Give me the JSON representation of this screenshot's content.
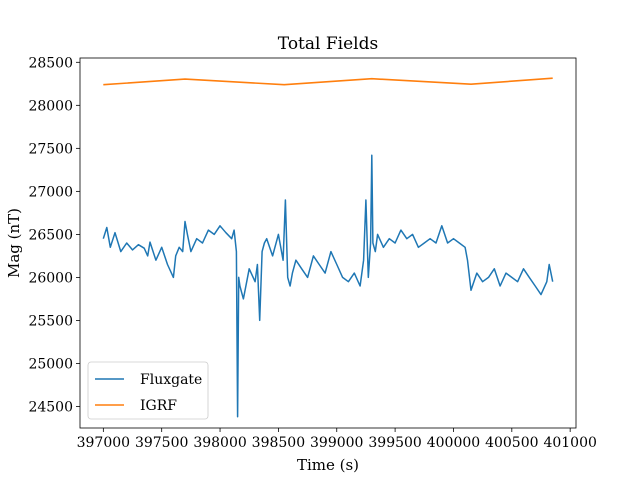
{
  "chart_data": {
    "type": "line",
    "title": "Total Fields",
    "xlabel": "Time (s)",
    "ylabel": "Mag (nT)",
    "xlim": [
      396800,
      401050
    ],
    "ylim": [
      24250,
      28550
    ],
    "xticks": [
      397000,
      397500,
      398000,
      398500,
      399000,
      399500,
      400000,
      400500,
      401000
    ],
    "yticks": [
      24500,
      25000,
      25500,
      26000,
      26500,
      27000,
      27500,
      28000,
      28500
    ],
    "grid": false,
    "legend": {
      "position": "lower-left",
      "entries": [
        {
          "label": "Fluxgate",
          "color": "#1f77b4"
        },
        {
          "label": "IGRF",
          "color": "#ff7f0e"
        }
      ]
    },
    "series": [
      {
        "name": "IGRF",
        "color": "#ff7f0e",
        "x": [
          397000,
          397700,
          398550,
          399300,
          400150,
          400850
        ],
        "y": [
          28240,
          28305,
          28240,
          28310,
          28245,
          28315
        ]
      },
      {
        "name": "Fluxgate",
        "color": "#1f77b4",
        "x": [
          397000,
          397030,
          397060,
          397100,
          397150,
          397200,
          397250,
          397300,
          397350,
          397380,
          397400,
          397450,
          397500,
          397550,
          397600,
          397620,
          397650,
          397680,
          397700,
          397720,
          397750,
          397800,
          397850,
          397900,
          397950,
          398000,
          398050,
          398100,
          398120,
          398140,
          398150,
          398160,
          398170,
          398200,
          398250,
          398300,
          398320,
          398340,
          398360,
          398380,
          398400,
          398450,
          398500,
          398540,
          398560,
          398580,
          398600,
          398620,
          398650,
          398700,
          398750,
          398800,
          398850,
          398900,
          398950,
          399000,
          399050,
          399100,
          399150,
          399200,
          399230,
          399250,
          399270,
          399290,
          399300,
          399310,
          399330,
          399350,
          399400,
          399450,
          399500,
          399550,
          399600,
          399650,
          399700,
          399750,
          399800,
          399850,
          399900,
          399950,
          400000,
          400050,
          400100,
          400120,
          400150,
          400200,
          400250,
          400300,
          400350,
          400400,
          400450,
          400500,
          400550,
          400600,
          400650,
          400700,
          400750,
          400800,
          400820,
          400850
        ],
        "y": [
          26450,
          26580,
          26350,
          26520,
          26300,
          26400,
          26320,
          26380,
          26340,
          26250,
          26410,
          26200,
          26350,
          26150,
          26000,
          26250,
          26350,
          26300,
          26650,
          26500,
          26300,
          26450,
          26400,
          26550,
          26500,
          26600,
          26520,
          26450,
          26550,
          26300,
          24380,
          26000,
          25900,
          25750,
          26100,
          25950,
          26150,
          25500,
          26300,
          26400,
          26450,
          26250,
          26500,
          26200,
          26900,
          26000,
          25900,
          26050,
          26200,
          26100,
          26000,
          26250,
          26150,
          26050,
          26300,
          26150,
          26000,
          25950,
          26050,
          25900,
          26200,
          26900,
          26000,
          26400,
          27420,
          26400,
          26300,
          26500,
          26350,
          26450,
          26400,
          26550,
          26450,
          26500,
          26350,
          26400,
          26450,
          26400,
          26600,
          26400,
          26450,
          26400,
          26350,
          26200,
          25850,
          26050,
          25950,
          26000,
          26100,
          25900,
          26050,
          26000,
          25950,
          26100,
          26000,
          25900,
          25800,
          25950,
          26150,
          25950
        ]
      }
    ]
  }
}
